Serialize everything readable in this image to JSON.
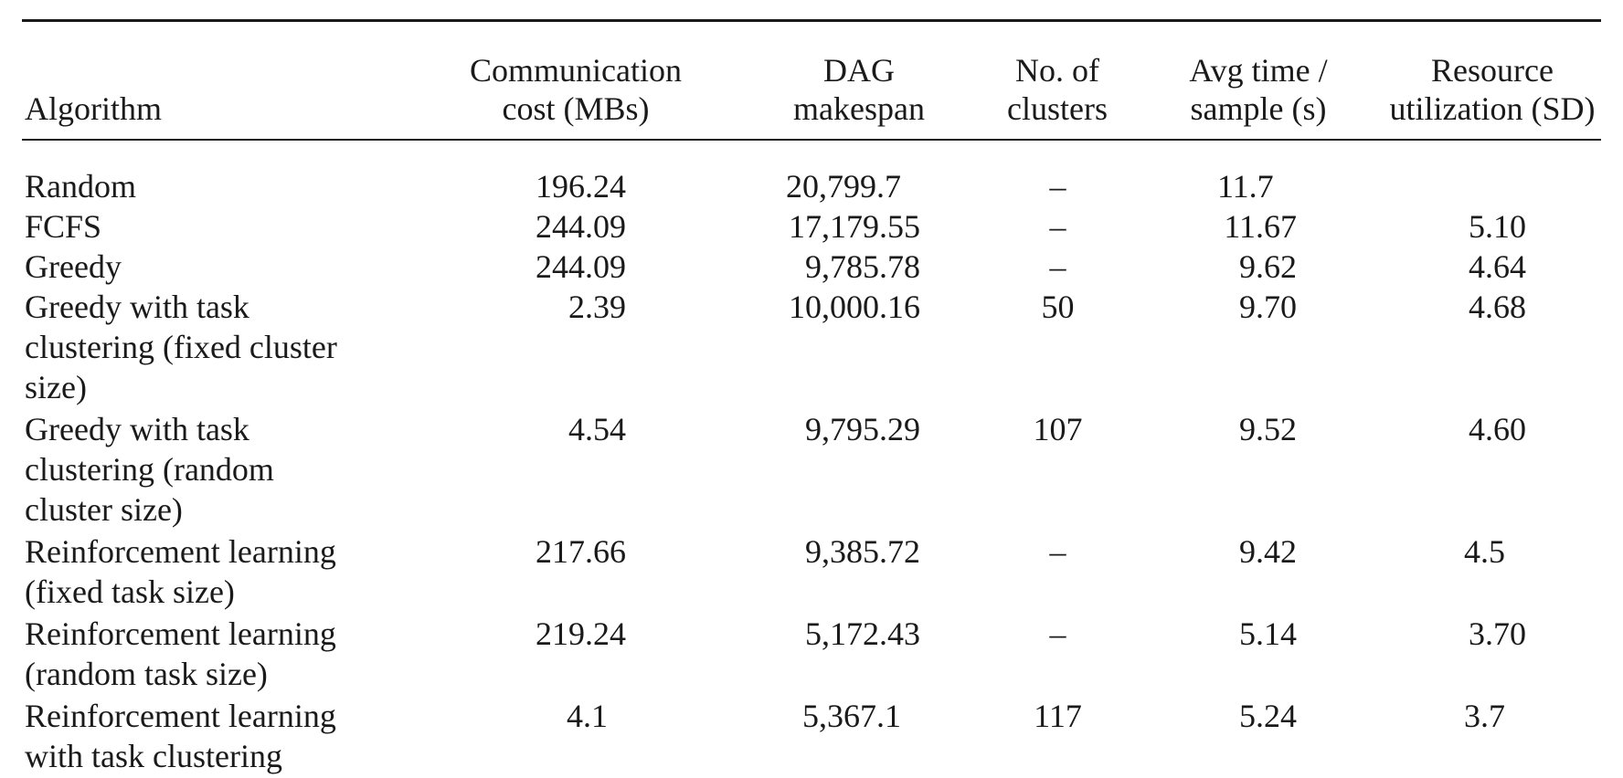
{
  "table": {
    "headers": [
      {
        "key": "algorithm",
        "lines": [
          "Algorithm"
        ]
      },
      {
        "key": "comm",
        "lines": [
          "Communication",
          "cost (MBs)"
        ]
      },
      {
        "key": "dag",
        "lines": [
          "DAG",
          "makespan"
        ]
      },
      {
        "key": "clusters",
        "lines": [
          "No. of",
          "clusters"
        ]
      },
      {
        "key": "avgtime",
        "lines": [
          "Avg time /",
          "sample (s)"
        ]
      },
      {
        "key": "resource",
        "lines": [
          "Resource",
          "utilization (SD)"
        ]
      }
    ],
    "rows": [
      {
        "algorithm": [
          "Random"
        ],
        "comm": "196.24",
        "dag": "20,799.7",
        "clusters": "–",
        "avgtime": "11.7",
        "resource": ""
      },
      {
        "algorithm": [
          "FCFS"
        ],
        "comm": "244.09",
        "dag": "17,179.55",
        "clusters": "–",
        "avgtime": "11.67",
        "resource": "5.10"
      },
      {
        "algorithm": [
          "Greedy"
        ],
        "comm": "244.09",
        "dag": "9,785.78",
        "clusters": "–",
        "avgtime": "9.62",
        "resource": "4.64"
      },
      {
        "algorithm": [
          "Greedy with task",
          "clustering (fixed cluster",
          "size)"
        ],
        "comm": "2.39",
        "dag": "10,000.16",
        "clusters": "50",
        "avgtime": "9.70",
        "resource": "4.68"
      },
      {
        "algorithm": [
          "Greedy with task",
          "clustering (random",
          "cluster size)"
        ],
        "comm": "4.54",
        "dag": "9,795.29",
        "clusters": "107",
        "avgtime": "9.52",
        "resource": "4.60"
      },
      {
        "algorithm": [
          "Reinforcement learning",
          "(fixed task size)"
        ],
        "comm": "217.66",
        "dag": "9,385.72",
        "clusters": "–",
        "avgtime": "9.42",
        "resource": "4.5"
      },
      {
        "algorithm": [
          "Reinforcement learning",
          "(random task size)"
        ],
        "comm": "219.24",
        "dag": "5,172.43",
        "clusters": "–",
        "avgtime": "5.14",
        "resource": "3.70"
      },
      {
        "algorithm": [
          "Reinforcement learning",
          "with task clustering"
        ],
        "comm": "4.1",
        "dag": "5,367.1",
        "clusters": "117",
        "avgtime": "5.24",
        "resource": "3.7"
      }
    ]
  }
}
